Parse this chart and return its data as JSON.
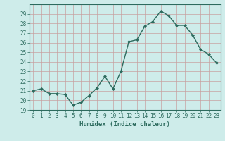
{
  "x": [
    0,
    1,
    2,
    3,
    4,
    5,
    6,
    7,
    8,
    9,
    10,
    11,
    12,
    13,
    14,
    15,
    16,
    17,
    18,
    19,
    20,
    21,
    22,
    23
  ],
  "y": [
    21.0,
    21.2,
    20.7,
    20.7,
    20.6,
    19.5,
    19.8,
    20.5,
    21.3,
    22.5,
    21.2,
    23.0,
    26.1,
    26.3,
    27.7,
    28.2,
    29.3,
    28.8,
    27.8,
    27.8,
    26.8,
    25.3,
    24.8,
    23.9
  ],
  "line_color": "#2d6b5e",
  "marker": "D",
  "marker_size": 2.0,
  "bg_color": "#ceecea",
  "grid_color_major": "#c8a0a0",
  "grid_color_minor": "#ddc8c8",
  "xlabel": "Humidex (Indice chaleur)",
  "ylim_min": 19,
  "ylim_max": 30,
  "yticks": [
    19,
    20,
    21,
    22,
    23,
    24,
    25,
    26,
    27,
    28,
    29
  ],
  "xticks": [
    0,
    1,
    2,
    3,
    4,
    5,
    6,
    7,
    8,
    9,
    10,
    11,
    12,
    13,
    14,
    15,
    16,
    17,
    18,
    19,
    20,
    21,
    22,
    23
  ],
  "tick_label_fontsize": 5.5,
  "xlabel_fontsize": 6.5,
  "line_width": 1.0,
  "spine_color": "#2d6b5e"
}
